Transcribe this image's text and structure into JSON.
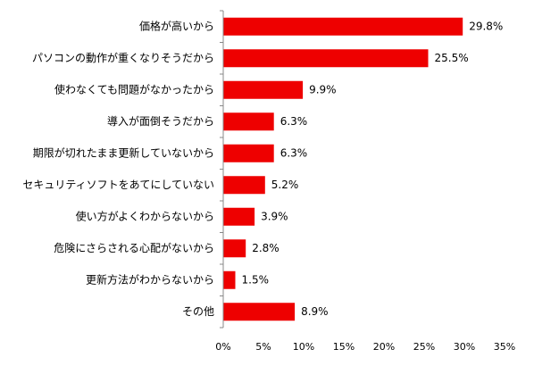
{
  "chart_data": {
    "type": "bar",
    "orientation": "horizontal",
    "categories": [
      "価格が高いから",
      "パソコンの動作が重くなりそうだから",
      "使わなくても問題がなかったから",
      "導入が面倒そうだから",
      "期限が切れたまま更新していないから",
      "セキュリティソフトをあてにしていない",
      "使い方がよくわからないから",
      "危険にさらされる心配がないから",
      "更新方法がわからないから",
      "その他"
    ],
    "values": [
      29.8,
      25.5,
      9.9,
      6.3,
      6.3,
      5.2,
      3.9,
      2.8,
      1.5,
      8.9
    ],
    "value_labels": [
      "29.8%",
      "25.5%",
      "9.9%",
      "6.3%",
      "6.3%",
      "5.2%",
      "3.9%",
      "2.8%",
      "1.5%",
      "8.9%"
    ],
    "xlim": [
      0,
      35
    ],
    "x_ticks": [
      0,
      5,
      10,
      15,
      20,
      25,
      30,
      35
    ],
    "x_tick_labels": [
      "0%",
      "5%",
      "10%",
      "15%",
      "20%",
      "25%",
      "30%",
      "35%"
    ],
    "bar_color": "#ee0000",
    "title": "",
    "xlabel": "",
    "ylabel": "",
    "grid": false,
    "legend": false
  }
}
